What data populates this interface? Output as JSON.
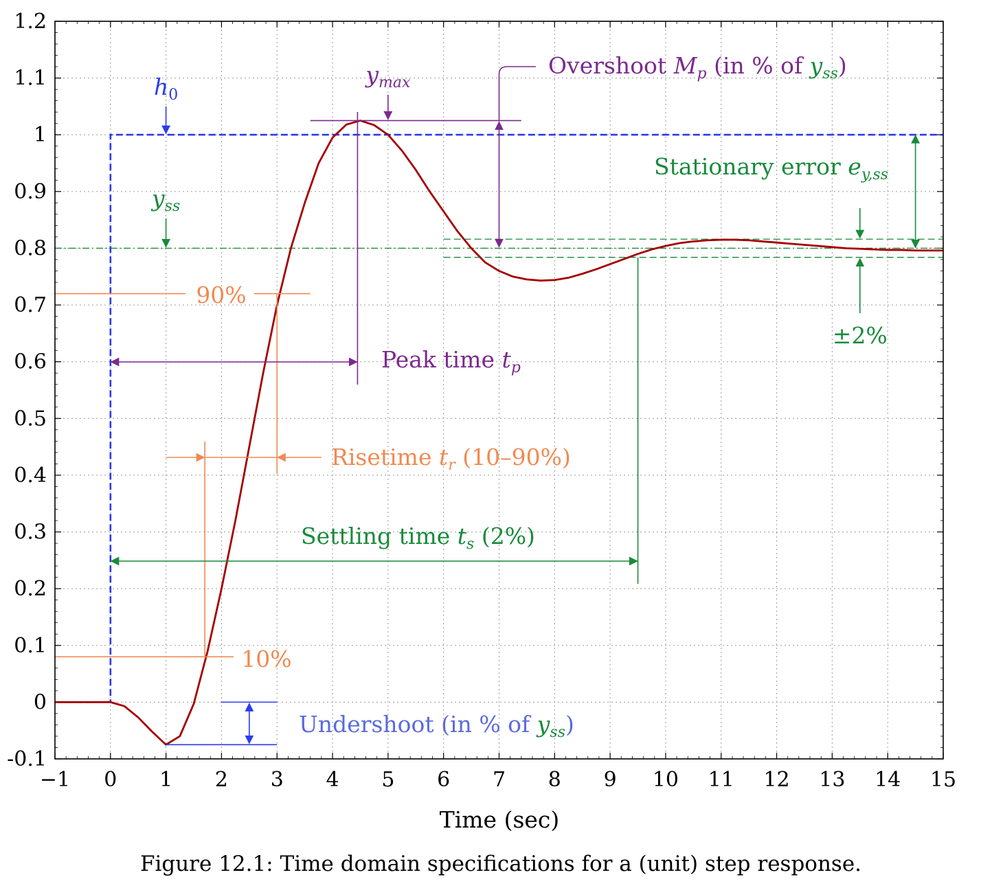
{
  "chart_data": {
    "type": "line",
    "xlabel": "Time (sec)",
    "xlim": [
      -1,
      15
    ],
    "ylim": [
      -0.1,
      1.2
    ],
    "grid": true,
    "x_ticks": [
      "−1",
      "0",
      "1",
      "2",
      "3",
      "4",
      "5",
      "6",
      "7",
      "8",
      "9",
      "10",
      "11",
      "12",
      "13",
      "14",
      "15"
    ],
    "y_ticks": [
      "-0.1",
      "0",
      "0.1",
      "0.2",
      "0.3",
      "0.4",
      "0.5",
      "0.6",
      "0.7",
      "0.8",
      "0.9",
      "1",
      "1.1",
      "1.2"
    ],
    "series": [
      {
        "role": "step response",
        "color": "#a50000",
        "x": [
          -1,
          0,
          0.25,
          0.5,
          0.75,
          1,
          1.25,
          1.5,
          1.75,
          2,
          2.25,
          2.5,
          2.75,
          3,
          3.25,
          3.5,
          3.75,
          4,
          4.25,
          4.5,
          4.75,
          5,
          5.25,
          5.5,
          5.75,
          6,
          6.25,
          6.5,
          6.75,
          7,
          7.25,
          7.5,
          7.75,
          8,
          8.25,
          8.5,
          8.75,
          9,
          9.25,
          9.5,
          9.75,
          10,
          10.25,
          10.5,
          10.75,
          11,
          11.25,
          11.5,
          11.75,
          12,
          12.25,
          12.5,
          12.75,
          13,
          13.25,
          13.5,
          13.75,
          14,
          14.25,
          14.5,
          14.75,
          15
        ],
        "y": [
          0,
          0,
          -0.007,
          -0.027,
          -0.052,
          -0.075,
          -0.06,
          -0.003,
          0.09,
          0.2,
          0.32,
          0.45,
          0.58,
          0.7,
          0.8,
          0.88,
          0.95,
          0.995,
          1.018,
          1.025,
          1.017,
          1.0,
          0.972,
          0.938,
          0.9,
          0.865,
          0.83,
          0.8,
          0.775,
          0.76,
          0.75,
          0.745,
          0.743,
          0.744,
          0.748,
          0.755,
          0.763,
          0.772,
          0.781,
          0.79,
          0.798,
          0.804,
          0.809,
          0.812,
          0.814,
          0.815,
          0.815,
          0.814,
          0.812,
          0.81,
          0.808,
          0.806,
          0.804,
          0.802,
          0.8,
          0.799,
          0.798,
          0.797,
          0.797,
          0.796,
          0.796,
          0.796
        ]
      },
      {
        "role": "step input h0",
        "color": "#2b3bef",
        "x": [
          -1,
          0,
          0,
          15
        ],
        "y": [
          0,
          0,
          1,
          1
        ]
      }
    ],
    "reference_levels": {
      "y_ss": 0.8,
      "tolerance_upper": 0.816,
      "tolerance_lower": 0.784,
      "level_90": 0.72,
      "level_10": 0.08,
      "y_max": 1.025,
      "h0": 1.0,
      "undershoot_min": -0.075
    },
    "annotations": {
      "h0": "h",
      "h0_sub": "0",
      "y_max": "y",
      "y_max_sub": "max",
      "y_ss": "y",
      "y_ss_sub": "ss",
      "overshoot": "Overshoot ",
      "overshoot_sym": "M",
      "overshoot_sub": "p",
      "overshoot_rest": " (in % of ",
      "overshoot_y": "y",
      "overshoot_ysub": "ss",
      "overshoot_close": ")",
      "stationary_error": "Stationary error ",
      "stationary_error_sym": "e",
      "stationary_error_sub": "y,ss",
      "tolerance": "±2%",
      "pct90": "90%",
      "pct10": "10%",
      "peak_time": "Peak time ",
      "peak_time_sym": "t",
      "peak_time_sub": "p",
      "risetime": "Risetime ",
      "risetime_sym": "t",
      "risetime_sub": "r",
      "risetime_rest": " (10–90%)",
      "settling_time": "Settling time ",
      "settling_time_sym": "t",
      "settling_time_sub": "s",
      "settling_time_rest": " (2%)",
      "undershoot": "Undershoot (in % of ",
      "undershoot_y": "y",
      "undershoot_ysub": "ss",
      "undershoot_close": ")"
    },
    "colors": {
      "response": "#a50000",
      "input": "#2b3bef",
      "green": "#1a8a3c",
      "purple": "#7b2a8e",
      "orange": "#f08a50",
      "undershoot_text": "#5a6ae0"
    }
  },
  "caption": "Figure 12.1: Time domain specifications for a (unit) step response."
}
